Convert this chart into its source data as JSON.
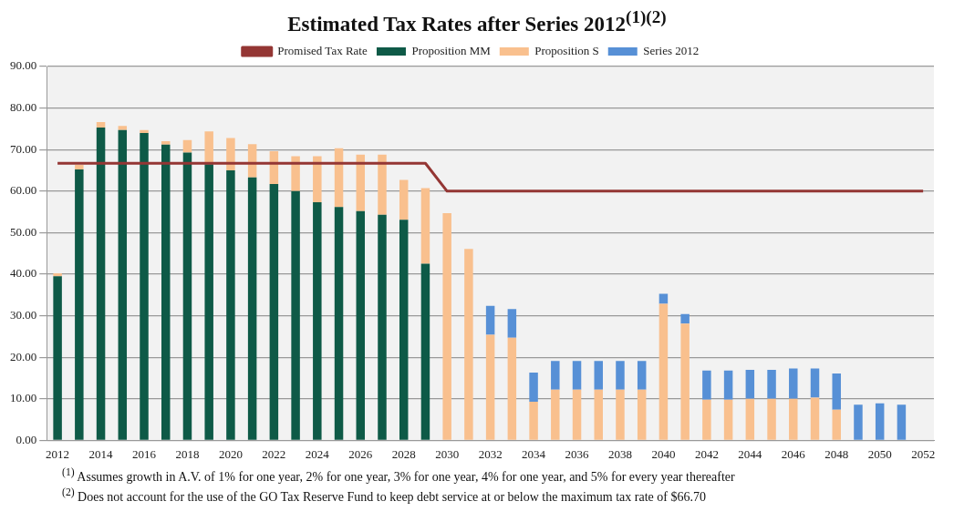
{
  "chart_data": {
    "type": "bar",
    "title": "Estimated Tax Rates after Series 2012$^{(1)(2)}$",
    "stacked": true,
    "legend": "top",
    "grid": "y",
    "categories": [
      "2012",
      null,
      "2014",
      null,
      "2016",
      null,
      "2018",
      null,
      "2020",
      null,
      "2022",
      null,
      "2024",
      null,
      "2026",
      null,
      "2028",
      null,
      "2030",
      null,
      "2032",
      null,
      "2034",
      null,
      "2036",
      null,
      "2038",
      null,
      "2040",
      null,
      "2042",
      null,
      "2044",
      null,
      "2046",
      null,
      "2048",
      null,
      "2050",
      null,
      "2052"
    ],
    "ylim": [
      0,
      90
    ],
    "yticks": [
      {
        "value": 0,
        "label": "0.00"
      },
      {
        "value": 10,
        "label": "10.00"
      },
      {
        "value": 20,
        "label": "20.00"
      },
      {
        "value": 30,
        "label": "30.00"
      },
      {
        "value": 40,
        "label": "40.00"
      },
      {
        "value": 50,
        "label": "50.00"
      },
      {
        "value": 60,
        "label": "60.00"
      },
      {
        "value": 70,
        "label": "70.00"
      },
      {
        "value": 80,
        "label": "80.00"
      },
      {
        "value": 90,
        "label": "90.00"
      }
    ],
    "series": [
      {
        "name": "Proposition MM",
        "color": "#0e5a47",
        "values": [
          39.5,
          65.2,
          75.3,
          74.7,
          74.0,
          71.2,
          69.3,
          66.5,
          65.0,
          63.3,
          61.7,
          60.0,
          57.3,
          56.2,
          55.2,
          54.3,
          53.1,
          42.5,
          null,
          null,
          null,
          null,
          null,
          null,
          null,
          null,
          null,
          null,
          null,
          null,
          null,
          null,
          null,
          null,
          null,
          null,
          null,
          null,
          null,
          null,
          null
        ]
      },
      {
        "name": "Proposition S",
        "color": "#f9c08e",
        "values": [
          0.7,
          1.1,
          1.3,
          1.0,
          0.7,
          0.8,
          3.0,
          7.9,
          7.8,
          8.0,
          7.9,
          8.4,
          11.1,
          14.1,
          13.6,
          14.5,
          9.6,
          18.2,
          54.7,
          46.1,
          25.4,
          24.7,
          9.3,
          12.2,
          12.2,
          12.2,
          12.2,
          12.2,
          32.9,
          28.1,
          9.8,
          9.8,
          10.0,
          10.0,
          10.0,
          10.3,
          7.4,
          null,
          null,
          null,
          null
        ]
      },
      {
        "name": "Series 2012",
        "color": "#5790d6",
        "values": [
          null,
          null,
          null,
          null,
          null,
          null,
          null,
          null,
          null,
          null,
          null,
          null,
          null,
          null,
          null,
          null,
          null,
          null,
          null,
          null,
          7.0,
          6.9,
          7.0,
          6.9,
          6.9,
          6.9,
          6.9,
          6.9,
          2.4,
          2.3,
          7.0,
          7.0,
          7.0,
          7.0,
          7.3,
          7.0,
          8.7,
          8.6,
          8.9,
          8.6,
          null
        ]
      },
      {
        "name": "Promised Tax Rate",
        "type": "line",
        "color": "#943634",
        "marker": "none",
        "values": [
          66.7,
          66.7,
          66.7,
          66.7,
          66.7,
          66.7,
          66.7,
          66.7,
          66.7,
          66.7,
          66.7,
          66.7,
          66.7,
          66.7,
          66.7,
          66.7,
          66.7,
          66.7,
          60.0,
          60.0,
          60.0,
          60.0,
          60.0,
          60.0,
          60.0,
          60.0,
          60.0,
          60.0,
          60.0,
          60.0,
          60.0,
          60.0,
          60.0,
          60.0,
          60.0,
          60.0,
          60.0,
          60.0,
          60.0,
          60.0,
          60.0
        ]
      }
    ],
    "annotations": [
      "$^{(1)}$ Assumes growth in A.V. of  1% for one year, 2% for one year, 3% for one year, 4% for one year, and 5% for every year thereafter",
      "$^{(2)}$ Does not account for the use of the  GO Tax Reserve Fund to keep  debt service at or below the maximum tax rate of $66.70"
    ]
  }
}
